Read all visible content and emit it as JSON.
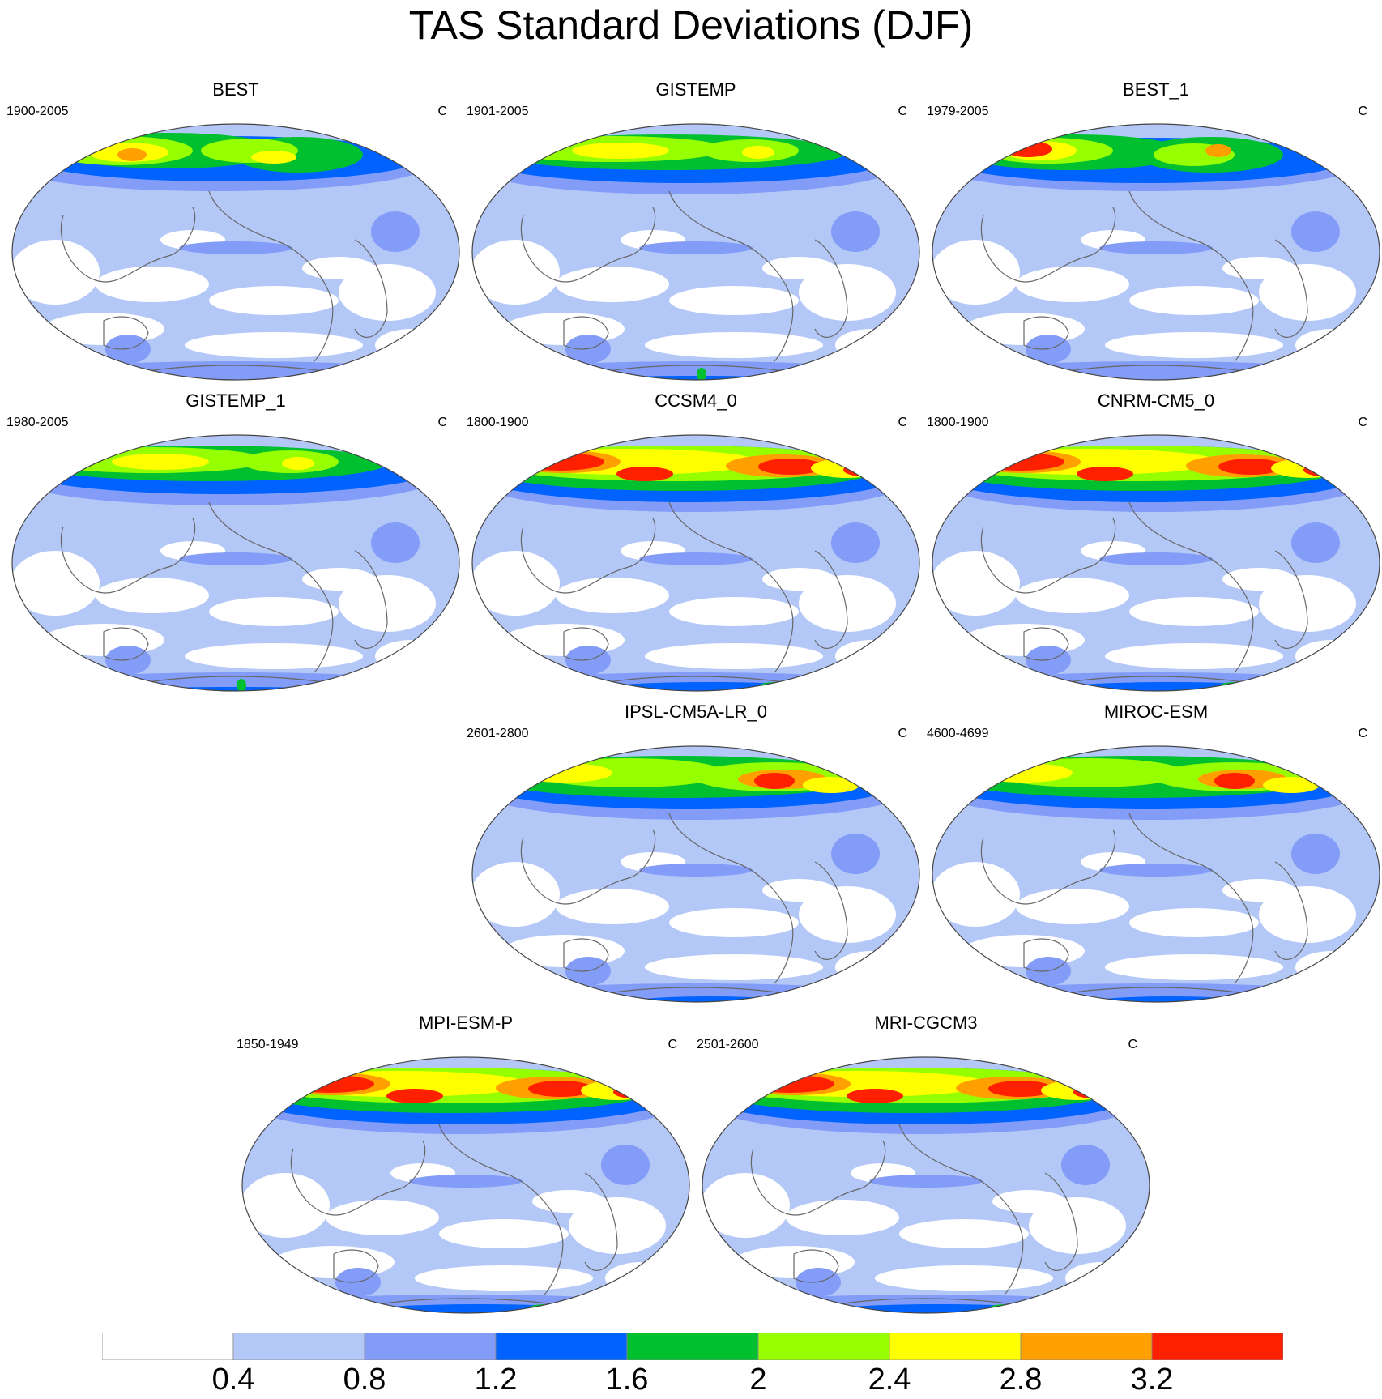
{
  "title": "TAS Standard Deviations (DJF)",
  "units": "C",
  "panels": [
    {
      "title": "BEST",
      "period": "1900-2005",
      "style": "obs_long"
    },
    {
      "title": "GISTEMP",
      "period": "1901-2005",
      "style": "obs_giss"
    },
    {
      "title": "BEST_1",
      "period": "1979-2005",
      "style": "obs_short"
    },
    {
      "title": "GISTEMP_1",
      "period": "1980-2005",
      "style": "obs_giss"
    },
    {
      "title": "CCSM4_0",
      "period": "1800-1900",
      "style": "model_hi"
    },
    {
      "title": "CNRM-CM5_0",
      "period": "1800-1900",
      "style": "model_hi"
    },
    {
      "title": "IPSL-CM5A-LR_0",
      "period": "2601-2800",
      "style": "model_mid"
    },
    {
      "title": "MIROC-ESM",
      "period": "4600-4699",
      "style": "model_mid"
    },
    {
      "title": "MPI-ESM-P",
      "period": "1850-1949",
      "style": "model_hi"
    },
    {
      "title": "MRI-CGCM3",
      "period": "2501-2600",
      "style": "model_hi"
    }
  ],
  "colorbar": {
    "colors": [
      "#ffffff",
      "#b4c8f8",
      "#829cf7",
      "#0062ff",
      "#00c030",
      "#96ff00",
      "#ffff00",
      "#ffa000",
      "#ff2000"
    ],
    "labels": [
      "0.4",
      "0.8",
      "1.2",
      "1.6",
      "2",
      "2.4",
      "2.8",
      "3.2"
    ]
  }
}
